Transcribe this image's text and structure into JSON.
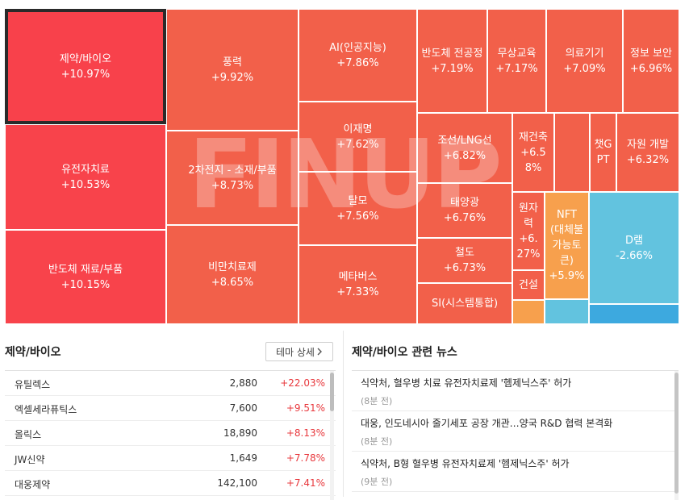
{
  "watermark": "FINUP",
  "treemap": [
    {
      "name": "제약/바이오",
      "pct": "+10.97%",
      "color": "#f8414b",
      "selected": true
    },
    {
      "name": "유전자치료",
      "pct": "+10.53%",
      "color": "#f8434b"
    },
    {
      "name": "반도체 재료/부품",
      "pct": "+10.15%",
      "color": "#f8434b"
    },
    {
      "name": "풍력",
      "pct": "+9.92%",
      "color": "#f2604a"
    },
    {
      "name": "2차전지 - 소재/부품",
      "pct": "+8.73%",
      "color": "#f2604a"
    },
    {
      "name": "비만치료제",
      "pct": "+8.65%",
      "color": "#f2604a"
    },
    {
      "name": "AI(인공지능)",
      "pct": "+7.86%",
      "color": "#f2604a"
    },
    {
      "name": "이재명",
      "pct": "+7.62%",
      "color": "#f2604a"
    },
    {
      "name": "탈모",
      "pct": "+7.56%",
      "color": "#f2604a"
    },
    {
      "name": "메타버스",
      "pct": "+7.33%",
      "color": "#f2604a"
    },
    {
      "name": "반도체 전공정",
      "pct": "+7.19%",
      "color": "#f2604a"
    },
    {
      "name": "무상교육",
      "pct": "+7.17%",
      "color": "#f2604a"
    },
    {
      "name": "의료기기",
      "pct": "+7.09%",
      "color": "#f2604a"
    },
    {
      "name": "정보 보안",
      "pct": "+6.96%",
      "color": "#f2604a"
    },
    {
      "name": "조선/LNG선",
      "pct": "+6.82%",
      "color": "#f2604a"
    },
    {
      "name": "재건축",
      "pct": "+6.58%",
      "color": "#f2604a"
    },
    {
      "name": "",
      "pct": "",
      "color": "#f2604a"
    },
    {
      "name": "챗GPT",
      "pct": "",
      "color": "#f2604a"
    },
    {
      "name": "자원 개발",
      "pct": "+6.32%",
      "color": "#f2604a"
    },
    {
      "name": "태양광",
      "pct": "+6.76%",
      "color": "#f2604a"
    },
    {
      "name": "원자력",
      "pct": "+6.27%",
      "color": "#f2604a"
    },
    {
      "name": "NFT (대체불가능토큰)",
      "pct": "+5.9%",
      "color": "#f7a04d"
    },
    {
      "name": "D램",
      "pct": "-2.66%",
      "color": "#62c3df"
    },
    {
      "name": "철도",
      "pct": "+6.73%",
      "color": "#f2604a"
    },
    {
      "name": "건설",
      "pct": "",
      "color": "#f2604a"
    },
    {
      "name": "SI(시스템통합)",
      "pct": "",
      "color": "#f2604a"
    },
    {
      "name": "",
      "pct": "",
      "color": "#f7a04d"
    },
    {
      "name": "",
      "pct": "",
      "color": "#62c3df"
    },
    {
      "name": "",
      "pct": "",
      "color": "#3da9df"
    }
  ],
  "theme_panel": {
    "title": "제약/바이오",
    "detail_button": "테마 상세",
    "stocks": [
      {
        "name": "유틸렉스",
        "price": "2,880",
        "change": "+22.03%"
      },
      {
        "name": "엑셀세라퓨틱스",
        "price": "7,600",
        "change": "+9.51%"
      },
      {
        "name": "올릭스",
        "price": "18,890",
        "change": "+8.13%"
      },
      {
        "name": "JW신약",
        "price": "1,649",
        "change": "+7.78%"
      },
      {
        "name": "대웅제약",
        "price": "142,100",
        "change": "+7.41%"
      }
    ]
  },
  "news_panel": {
    "title": "제약/바이오 관련 뉴스",
    "items": [
      {
        "title": "식약처, 혈우병 치료 유전자치료제 '헴제닉스주' 허가",
        "time": "(8분 전)"
      },
      {
        "title": "대웅, 인도네시아 줄기세포 공장 개관…양국 R&D 협력 본격화",
        "time": "(8분 전)"
      },
      {
        "title": "식약처, B형 혈우병 유전자치료제 '헴제닉스주' 허가",
        "time": "(9분 전)"
      }
    ]
  }
}
